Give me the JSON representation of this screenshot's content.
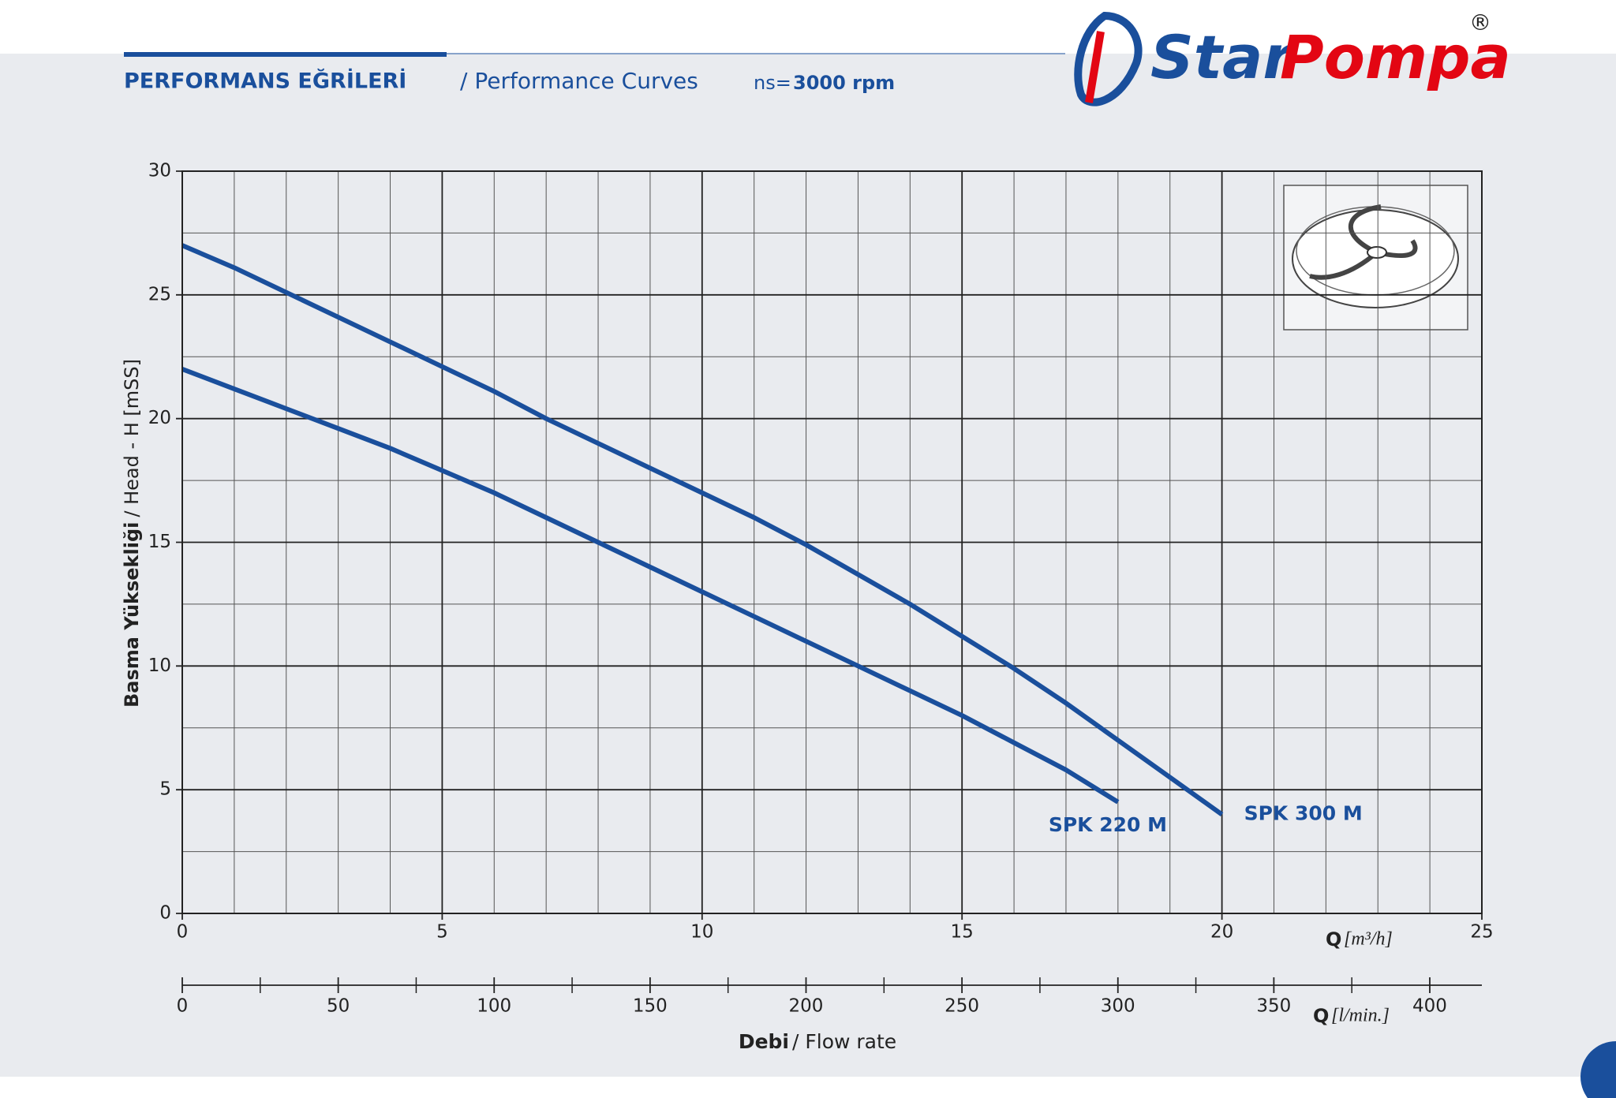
{
  "header": {
    "title": "PERFORMANS EĞRİLERİ",
    "subtitle": "/ Performance Curves",
    "speed_prefix": "ns=",
    "speed": "3000 rpm"
  },
  "logo": {
    "name_1": "Star",
    "name_2": "Pompa",
    "mark": "®"
  },
  "chart_data": {
    "type": "line",
    "y_label_bold": "Basma Yüksekliği",
    "y_label": "/ Head - H [mSS]",
    "x_label_q": "Q",
    "x_label_unit": "[m³/h]",
    "x2_label_q": "Q",
    "x2_label_unit": "[l/min.]",
    "footer_bold": "Debi",
    "footer": "/ Flow rate",
    "xlim": [
      0,
      25
    ],
    "xticks": [
      0,
      5,
      10,
      15,
      20,
      25
    ],
    "xminor_ticks": [
      1,
      2,
      3,
      4,
      6,
      7,
      8,
      9,
      11,
      12,
      13,
      14,
      16,
      17,
      18,
      19,
      21,
      22,
      23,
      24
    ],
    "ylim": [
      0,
      30
    ],
    "yticks": [
      0,
      5,
      10,
      15,
      20,
      25,
      30
    ],
    "yminor_ticks": [
      2.5,
      7.5,
      12.5,
      17.5,
      22.5,
      27.5
    ],
    "x2lim": [
      0,
      416.7
    ],
    "x2ticks": [
      0,
      50,
      100,
      150,
      200,
      250,
      300,
      350,
      400
    ],
    "x2minor_ticks": [
      25,
      75,
      125,
      175,
      225,
      275,
      325,
      375
    ],
    "grid": true,
    "series": [
      {
        "name": "SPK 300 M",
        "color": "#1a4f9c",
        "x": [
          0,
          1,
          2,
          3,
          4,
          5,
          6,
          7,
          8,
          9,
          10,
          11,
          12,
          13,
          14,
          15,
          16,
          17,
          18,
          19,
          20
        ],
        "values": [
          27,
          26.1,
          25.1,
          24.1,
          23.1,
          22.1,
          21.1,
          20,
          19,
          18,
          17,
          16,
          14.9,
          13.7,
          12.5,
          11.2,
          9.9,
          8.5,
          7,
          5.5,
          4
        ]
      },
      {
        "name": "SPK 220 M",
        "color": "#1a4f9c",
        "x": [
          0,
          1,
          2,
          3,
          4,
          5,
          6,
          7,
          8,
          9,
          10,
          11,
          12,
          13,
          14,
          15,
          16,
          17,
          18
        ],
        "values": [
          22,
          21.2,
          20.4,
          19.6,
          18.8,
          17.9,
          17,
          16,
          15,
          14,
          13,
          12,
          11,
          10,
          9,
          8,
          6.9,
          5.8,
          4.5
        ]
      }
    ]
  }
}
